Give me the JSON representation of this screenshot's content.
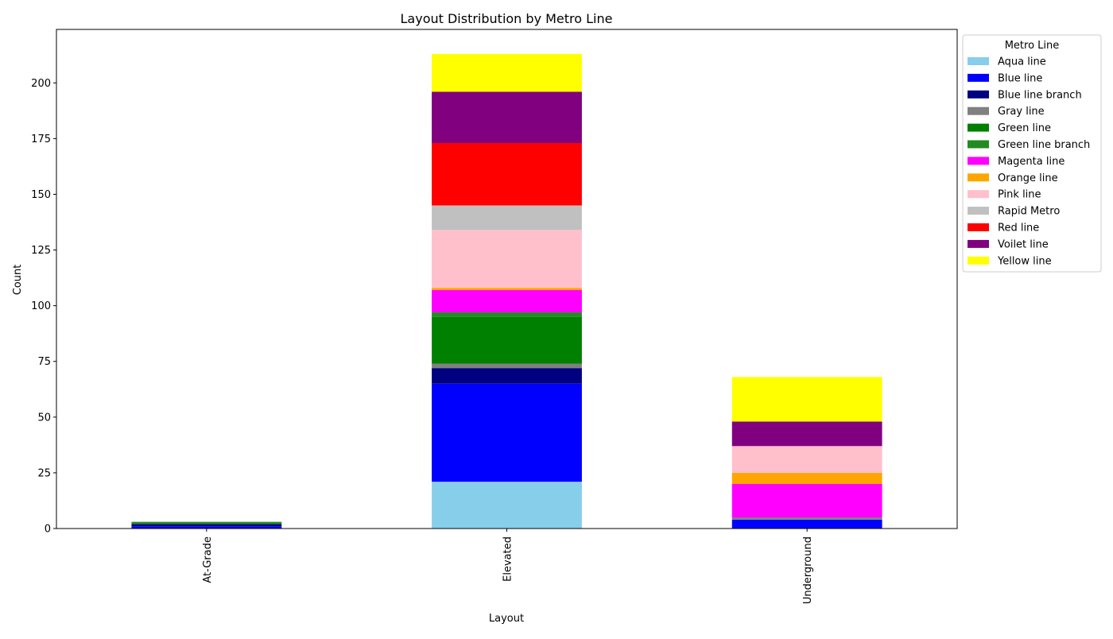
{
  "chart_data": {
    "type": "bar",
    "stacked": true,
    "title": "Layout Distribution by Metro Line",
    "xlabel": "Layout",
    "ylabel": "Count",
    "ylim": [
      0,
      224
    ],
    "yticks": [
      0,
      25,
      50,
      75,
      100,
      125,
      150,
      175,
      200
    ],
    "categories": [
      "At-Grade",
      "Elevated",
      "Underground"
    ],
    "legend": {
      "title": "Metro Line",
      "placement": "outside right"
    },
    "grid": false,
    "series": [
      {
        "name": "Aqua line",
        "color": "#87ceeb",
        "values": [
          0,
          21,
          0
        ]
      },
      {
        "name": "Blue line",
        "color": "#0000ff",
        "values": [
          1,
          44,
          4
        ]
      },
      {
        "name": "Blue line branch",
        "color": "#000080",
        "values": [
          1,
          7,
          0
        ]
      },
      {
        "name": "Gray line",
        "color": "#808080",
        "values": [
          0,
          2,
          1
        ]
      },
      {
        "name": "Green line",
        "color": "#008000",
        "values": [
          0,
          21,
          0
        ]
      },
      {
        "name": "Green line branch",
        "color": "#228b22",
        "values": [
          1,
          2,
          0
        ]
      },
      {
        "name": "Magenta line",
        "color": "#ff00ff",
        "values": [
          0,
          10,
          15
        ]
      },
      {
        "name": "Orange line",
        "color": "#ffa500",
        "values": [
          0,
          1,
          5
        ]
      },
      {
        "name": "Pink line",
        "color": "#ffc0cb",
        "values": [
          0,
          26,
          12
        ]
      },
      {
        "name": "Rapid Metro",
        "color": "#c0c0c0",
        "values": [
          0,
          11,
          0
        ]
      },
      {
        "name": "Red line",
        "color": "#ff0000",
        "values": [
          0,
          28,
          0
        ]
      },
      {
        "name": "Voilet line",
        "color": "#800080",
        "values": [
          0,
          23,
          11
        ]
      },
      {
        "name": "Yellow line",
        "color": "#ffff00",
        "values": [
          0,
          17,
          20
        ]
      }
    ]
  }
}
